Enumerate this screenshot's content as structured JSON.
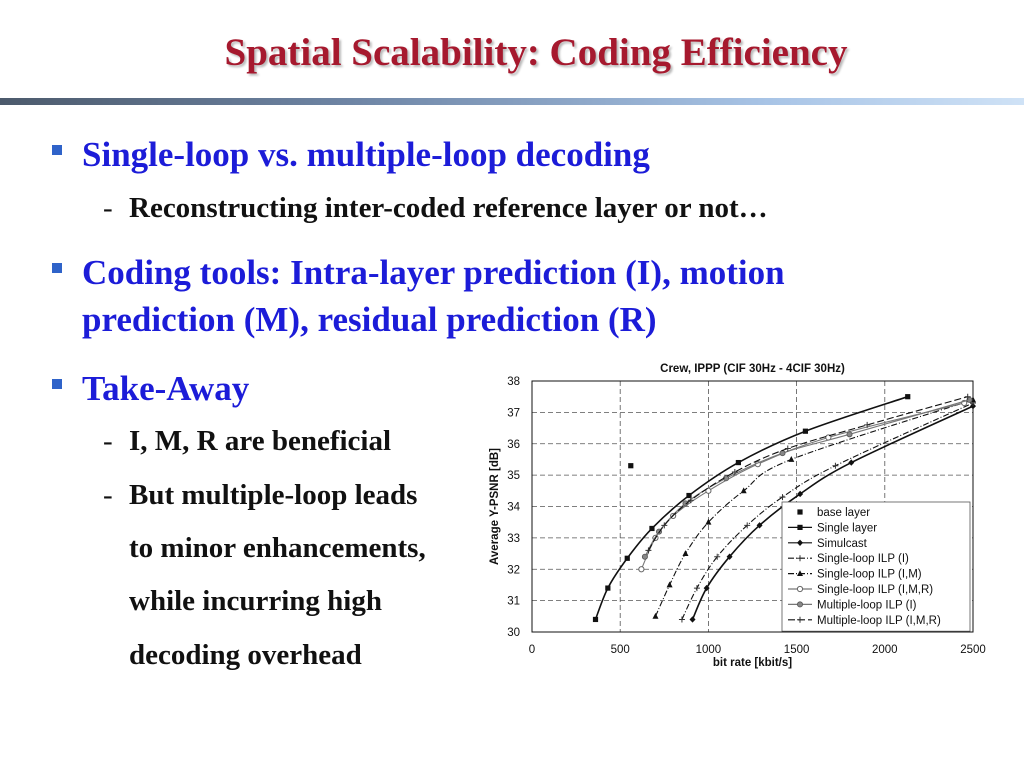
{
  "slide": {
    "title": "Spatial Scalability: Coding Efficiency",
    "bullets": [
      {
        "text": "Single-loop vs. multiple-loop decoding",
        "subs": [
          "Reconstructing inter-coded reference layer or not…"
        ]
      },
      {
        "text": "Coding tools: Intra-layer prediction (I), motion prediction (M), residual prediction (R)",
        "subs": []
      },
      {
        "text": "Take-Away",
        "subs": [
          "I, M, R are beneficial",
          "But multiple-loop leads to minor enhancements, while incurring high decoding overhead"
        ]
      }
    ],
    "sub_dash": "-",
    "takeaway_lines": [
      "But multiple-loop leads",
      "to minor enhancements,",
      "while incurring high",
      "decoding overhead"
    ],
    "colors": {
      "title": "#a6192e",
      "bullet_text": "#1c1cd8",
      "bullet_marker": "#2f63c9",
      "sub_text": "#111111"
    }
  },
  "chart_data": {
    "type": "line",
    "title": "Crew, IPPP (CIF 30Hz - 4CIF 30Hz)",
    "xlabel": "bit rate [kbit/s]",
    "ylabel": "Average Y-PSNR [dB]",
    "xlim": [
      0,
      2500
    ],
    "ylim": [
      30,
      38
    ],
    "xticks": [
      0,
      500,
      1000,
      1500,
      2000,
      2500
    ],
    "yticks": [
      30,
      31,
      32,
      33,
      34,
      35,
      36,
      37,
      38
    ],
    "grid": true,
    "legend_position": "bottom-right",
    "series": [
      {
        "name": "base layer",
        "style": "point",
        "marker": "square",
        "points": [
          [
            560,
            35.3
          ]
        ]
      },
      {
        "name": "Single layer",
        "style": "solid",
        "marker": "square",
        "points": [
          [
            360,
            30.4
          ],
          [
            430,
            31.4
          ],
          [
            540,
            32.35
          ],
          [
            680,
            33.3
          ],
          [
            890,
            34.35
          ],
          [
            1170,
            35.4
          ],
          [
            1550,
            36.4
          ],
          [
            2130,
            37.5
          ]
        ]
      },
      {
        "name": "Simulcast",
        "style": "solid",
        "marker": "diamond",
        "points": [
          [
            910,
            30.4
          ],
          [
            990,
            31.4
          ],
          [
            1120,
            32.4
          ],
          [
            1290,
            33.4
          ],
          [
            1520,
            34.4
          ],
          [
            1810,
            35.4
          ],
          [
            2500,
            37.2
          ]
        ]
      },
      {
        "name": "Single-loop ILP (I)",
        "style": "dash-dot",
        "marker": "cross",
        "points": [
          [
            850,
            30.4
          ],
          [
            935,
            31.4
          ],
          [
            1050,
            32.4
          ],
          [
            1220,
            33.4
          ],
          [
            1420,
            34.3
          ],
          [
            1720,
            35.3
          ],
          [
            2500,
            37.3
          ]
        ]
      },
      {
        "name": "Single-loop ILP (I,M)",
        "style": "dash-dot",
        "marker": "triangle",
        "points": [
          [
            700,
            30.5
          ],
          [
            780,
            31.5
          ],
          [
            870,
            32.5
          ],
          [
            1000,
            33.5
          ],
          [
            1200,
            34.5
          ],
          [
            1470,
            35.5
          ],
          [
            2500,
            37.4
          ]
        ]
      },
      {
        "name": "Single-loop ILP (I,M,R)",
        "style": "solid",
        "marker": "circle-open",
        "points": [
          [
            620,
            32.0
          ],
          [
            700,
            33.0
          ],
          [
            800,
            33.7
          ],
          [
            1000,
            34.5
          ],
          [
            1280,
            35.35
          ],
          [
            1680,
            36.2
          ],
          [
            2450,
            37.3
          ]
        ]
      },
      {
        "name": "Multiple-loop ILP (I)",
        "style": "solid",
        "marker": "circle-filled",
        "points": [
          [
            640,
            32.4
          ],
          [
            720,
            33.2
          ],
          [
            870,
            34.1
          ],
          [
            1100,
            34.9
          ],
          [
            1420,
            35.7
          ],
          [
            1800,
            36.3
          ],
          [
            2480,
            37.4
          ]
        ]
      },
      {
        "name": "Multiple-loop ILP (I,M,R)",
        "style": "dash",
        "marker": "cross",
        "points": [
          [
            660,
            32.6
          ],
          [
            750,
            33.4
          ],
          [
            900,
            34.2
          ],
          [
            1150,
            35.1
          ],
          [
            1450,
            35.85
          ],
          [
            1900,
            36.6
          ],
          [
            2470,
            37.5
          ]
        ]
      }
    ]
  }
}
